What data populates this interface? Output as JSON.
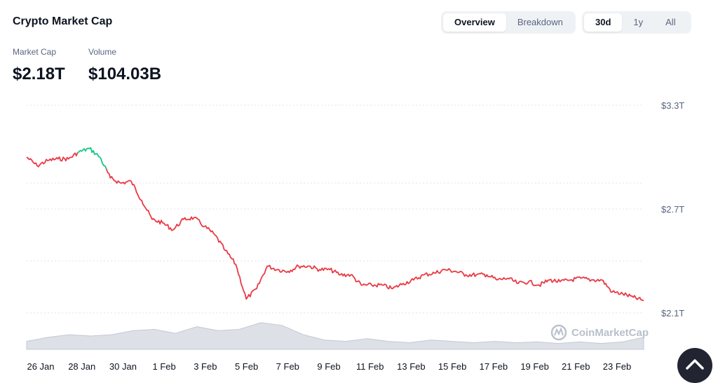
{
  "header": {
    "title": "Crypto Market Cap",
    "view_tabs": [
      "Overview",
      "Breakdown"
    ],
    "active_view": 0,
    "range_tabs": [
      "30d",
      "1y",
      "All"
    ],
    "active_range": 0
  },
  "stats": {
    "market_cap_label": "Market Cap",
    "market_cap_value": "$2.18T",
    "volume_label": "Volume",
    "volume_value": "$104.03B"
  },
  "watermark": "CoinMarketCap",
  "colors": {
    "down": "#ea3943",
    "up": "#16c784",
    "volume": "#d1d6df",
    "grid": "#dfe3ea"
  },
  "chart_data": {
    "type": "line",
    "title": "",
    "xlabel": "",
    "ylabel": "",
    "y_ticks": [
      "$3.3T",
      "$2.7T",
      "$2.1T"
    ],
    "ylim": [
      2.1,
      3.3
    ],
    "x_ticks": [
      "26 Jan",
      "28 Jan",
      "30 Jan",
      "1 Feb",
      "3 Feb",
      "5 Feb",
      "7 Feb",
      "9 Feb",
      "11 Feb",
      "13 Feb",
      "15 Feb",
      "17 Feb",
      "19 Feb",
      "21 Feb",
      "23 Feb"
    ],
    "grid": true,
    "series": [
      {
        "role": "market-cap",
        "x": [
          "26 Jan",
          "26 Jan",
          "27 Jan",
          "27 Jan",
          "28 Jan",
          "28 Jan",
          "29 Jan",
          "29 Jan",
          "30 Jan",
          "30 Jan",
          "31 Jan",
          "31 Jan",
          "1 Feb",
          "1 Feb",
          "2 Feb",
          "2 Feb",
          "3 Feb",
          "3 Feb",
          "4 Feb",
          "4 Feb",
          "5 Feb",
          "5 Feb",
          "6 Feb",
          "6 Feb",
          "7 Feb",
          "7 Feb",
          "8 Feb",
          "8 Feb",
          "9 Feb",
          "9 Feb",
          "10 Feb",
          "10 Feb",
          "11 Feb",
          "11 Feb",
          "12 Feb",
          "12 Feb",
          "13 Feb",
          "13 Feb",
          "14 Feb",
          "14 Feb",
          "15 Feb",
          "15 Feb",
          "16 Feb",
          "16 Feb",
          "17 Feb",
          "17 Feb",
          "18 Feb",
          "18 Feb",
          "19 Feb",
          "19 Feb",
          "20 Feb",
          "20 Feb",
          "21 Feb",
          "21 Feb",
          "22 Feb",
          "22 Feb",
          "23 Feb",
          "23 Feb",
          "24 Feb",
          "24 Feb"
        ],
        "values": [
          3.0,
          2.95,
          2.98,
          2.99,
          2.99,
          3.03,
          3.05,
          3.0,
          2.88,
          2.85,
          2.86,
          2.75,
          2.64,
          2.62,
          2.58,
          2.64,
          2.65,
          2.6,
          2.55,
          2.46,
          2.38,
          2.18,
          2.24,
          2.37,
          2.35,
          2.34,
          2.37,
          2.37,
          2.35,
          2.35,
          2.32,
          2.32,
          2.26,
          2.26,
          2.26,
          2.24,
          2.27,
          2.29,
          2.32,
          2.33,
          2.35,
          2.34,
          2.32,
          2.32,
          2.32,
          2.29,
          2.3,
          2.27,
          2.28,
          2.26,
          2.29,
          2.28,
          2.29,
          2.3,
          2.29,
          2.29,
          2.22,
          2.21,
          2.19,
          2.17
        ],
        "up_range": [
          "28 Jan",
          "29 Jan"
        ]
      },
      {
        "role": "volume",
        "x": [
          "26 Jan",
          "27 Jan",
          "28 Jan",
          "29 Jan",
          "30 Jan",
          "31 Jan",
          "1 Feb",
          "2 Feb",
          "3 Feb",
          "4 Feb",
          "5 Feb",
          "6 Feb",
          "7 Feb",
          "8 Feb",
          "9 Feb",
          "10 Feb",
          "11 Feb",
          "12 Feb",
          "13 Feb",
          "14 Feb",
          "15 Feb",
          "16 Feb",
          "17 Feb",
          "18 Feb",
          "19 Feb",
          "20 Feb",
          "21 Feb",
          "22 Feb",
          "23 Feb",
          "24 Feb"
        ],
        "values": [
          0.3,
          0.45,
          0.55,
          0.5,
          0.55,
          0.7,
          0.75,
          0.6,
          0.85,
          0.7,
          0.75,
          1.0,
          0.9,
          0.55,
          0.35,
          0.3,
          0.4,
          0.3,
          0.25,
          0.35,
          0.3,
          0.25,
          0.3,
          0.25,
          0.28,
          0.22,
          0.28,
          0.22,
          0.28,
          0.45
        ]
      }
    ]
  }
}
